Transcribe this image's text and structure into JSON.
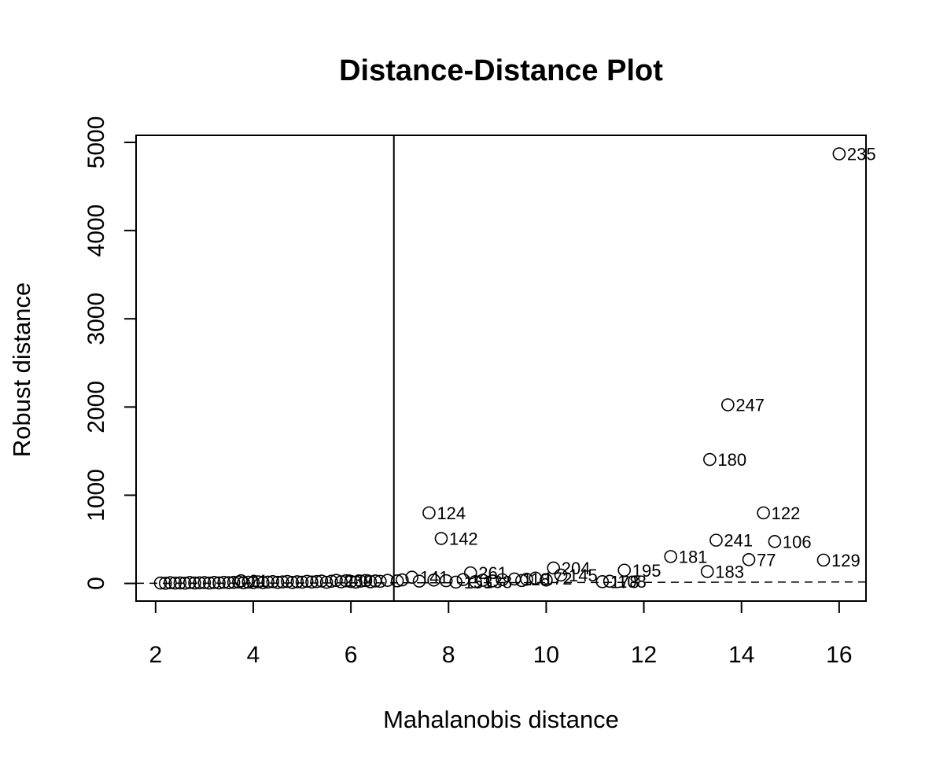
{
  "chart_data": {
    "type": "scatter",
    "title": "Distance-Distance Plot",
    "xlabel": "Mahalanobis distance",
    "ylabel": "Robust distance",
    "xlim": [
      1.6,
      16.55
    ],
    "ylim": [
      -200,
      5080
    ],
    "xticks": [
      2,
      4,
      6,
      8,
      10,
      12,
      14,
      16
    ],
    "yticks": [
      0,
      1000,
      2000,
      3000,
      4000,
      5000
    ],
    "cutoff_vertical_x": 6.88,
    "reference_line": "y = x (dashed)",
    "grid": false,
    "legend": "none",
    "labeled_points": [
      {
        "x": 16.0,
        "y": 4870,
        "label": "235"
      },
      {
        "x": 13.72,
        "y": 2025,
        "label": "247"
      },
      {
        "x": 13.35,
        "y": 1405,
        "label": "180"
      },
      {
        "x": 14.45,
        "y": 800,
        "label": "122"
      },
      {
        "x": 7.6,
        "y": 800,
        "label": "124"
      },
      {
        "x": 7.85,
        "y": 510,
        "label": "142"
      },
      {
        "x": 13.48,
        "y": 490,
        "label": "241"
      },
      {
        "x": 14.68,
        "y": 475,
        "label": "106"
      },
      {
        "x": 12.55,
        "y": 305,
        "label": "181"
      },
      {
        "x": 14.15,
        "y": 270,
        "label": "77"
      },
      {
        "x": 15.68,
        "y": 265,
        "label": "129"
      },
      {
        "x": 13.3,
        "y": 135,
        "label": "183"
      },
      {
        "x": 11.6,
        "y": 150,
        "label": "195"
      },
      {
        "x": 10.15,
        "y": 175,
        "label": "204"
      },
      {
        "x": 8.45,
        "y": 120,
        "label": "261"
      },
      {
        "x": 10.3,
        "y": 95,
        "label": "145"
      },
      {
        "x": 11.15,
        "y": 20,
        "label": "178"
      },
      {
        "x": 11.3,
        "y": 25,
        "label": "108"
      },
      {
        "x": 9.35,
        "y": 50,
        "label": "118"
      },
      {
        "x": 9.78,
        "y": 60,
        "label": "172"
      },
      {
        "x": 7.25,
        "y": 70,
        "label": "141"
      },
      {
        "x": 5.7,
        "y": 35,
        "label": "239"
      },
      {
        "x": 8.15,
        "y": 15,
        "label": "153"
      },
      {
        "x": 8.55,
        "y": 20,
        "label": "138"
      },
      {
        "x": 3.75,
        "y": 30,
        "label": "21"
      }
    ],
    "cluster_points": [
      [
        2.1,
        5
      ],
      [
        2.2,
        2
      ],
      [
        2.3,
        8
      ],
      [
        2.4,
        4
      ],
      [
        2.5,
        6
      ],
      [
        2.6,
        3
      ],
      [
        2.7,
        10
      ],
      [
        2.8,
        5
      ],
      [
        2.9,
        7
      ],
      [
        3.0,
        9
      ],
      [
        3.1,
        4
      ],
      [
        3.2,
        11
      ],
      [
        3.3,
        6
      ],
      [
        3.4,
        13
      ],
      [
        3.5,
        8
      ],
      [
        3.6,
        12
      ],
      [
        3.7,
        16
      ],
      [
        3.8,
        7
      ],
      [
        3.9,
        14
      ],
      [
        4.0,
        10
      ],
      [
        4.1,
        18
      ],
      [
        4.2,
        9
      ],
      [
        4.3,
        15
      ],
      [
        4.4,
        20
      ],
      [
        4.5,
        12
      ],
      [
        4.6,
        17
      ],
      [
        4.7,
        22
      ],
      [
        4.8,
        11
      ],
      [
        4.9,
        19
      ],
      [
        5.0,
        14
      ],
      [
        5.1,
        24
      ],
      [
        5.2,
        16
      ],
      [
        5.3,
        21
      ],
      [
        5.4,
        27
      ],
      [
        5.5,
        13
      ],
      [
        5.6,
        25
      ],
      [
        5.8,
        18
      ],
      [
        5.9,
        30
      ],
      [
        6.0,
        22
      ],
      [
        6.1,
        15
      ],
      [
        6.2,
        26
      ],
      [
        6.3,
        33
      ],
      [
        6.4,
        19
      ],
      [
        6.5,
        28
      ],
      [
        6.6,
        24
      ],
      [
        6.75,
        35
      ],
      [
        6.95,
        29
      ],
      [
        7.05,
        40
      ],
      [
        7.4,
        26
      ],
      [
        7.7,
        38
      ],
      [
        7.95,
        31
      ],
      [
        8.3,
        44
      ],
      [
        8.7,
        36
      ],
      [
        8.9,
        28
      ],
      [
        9.1,
        42
      ],
      [
        9.5,
        33
      ],
      [
        9.6,
        47
      ],
      [
        10.0,
        39
      ]
    ]
  }
}
